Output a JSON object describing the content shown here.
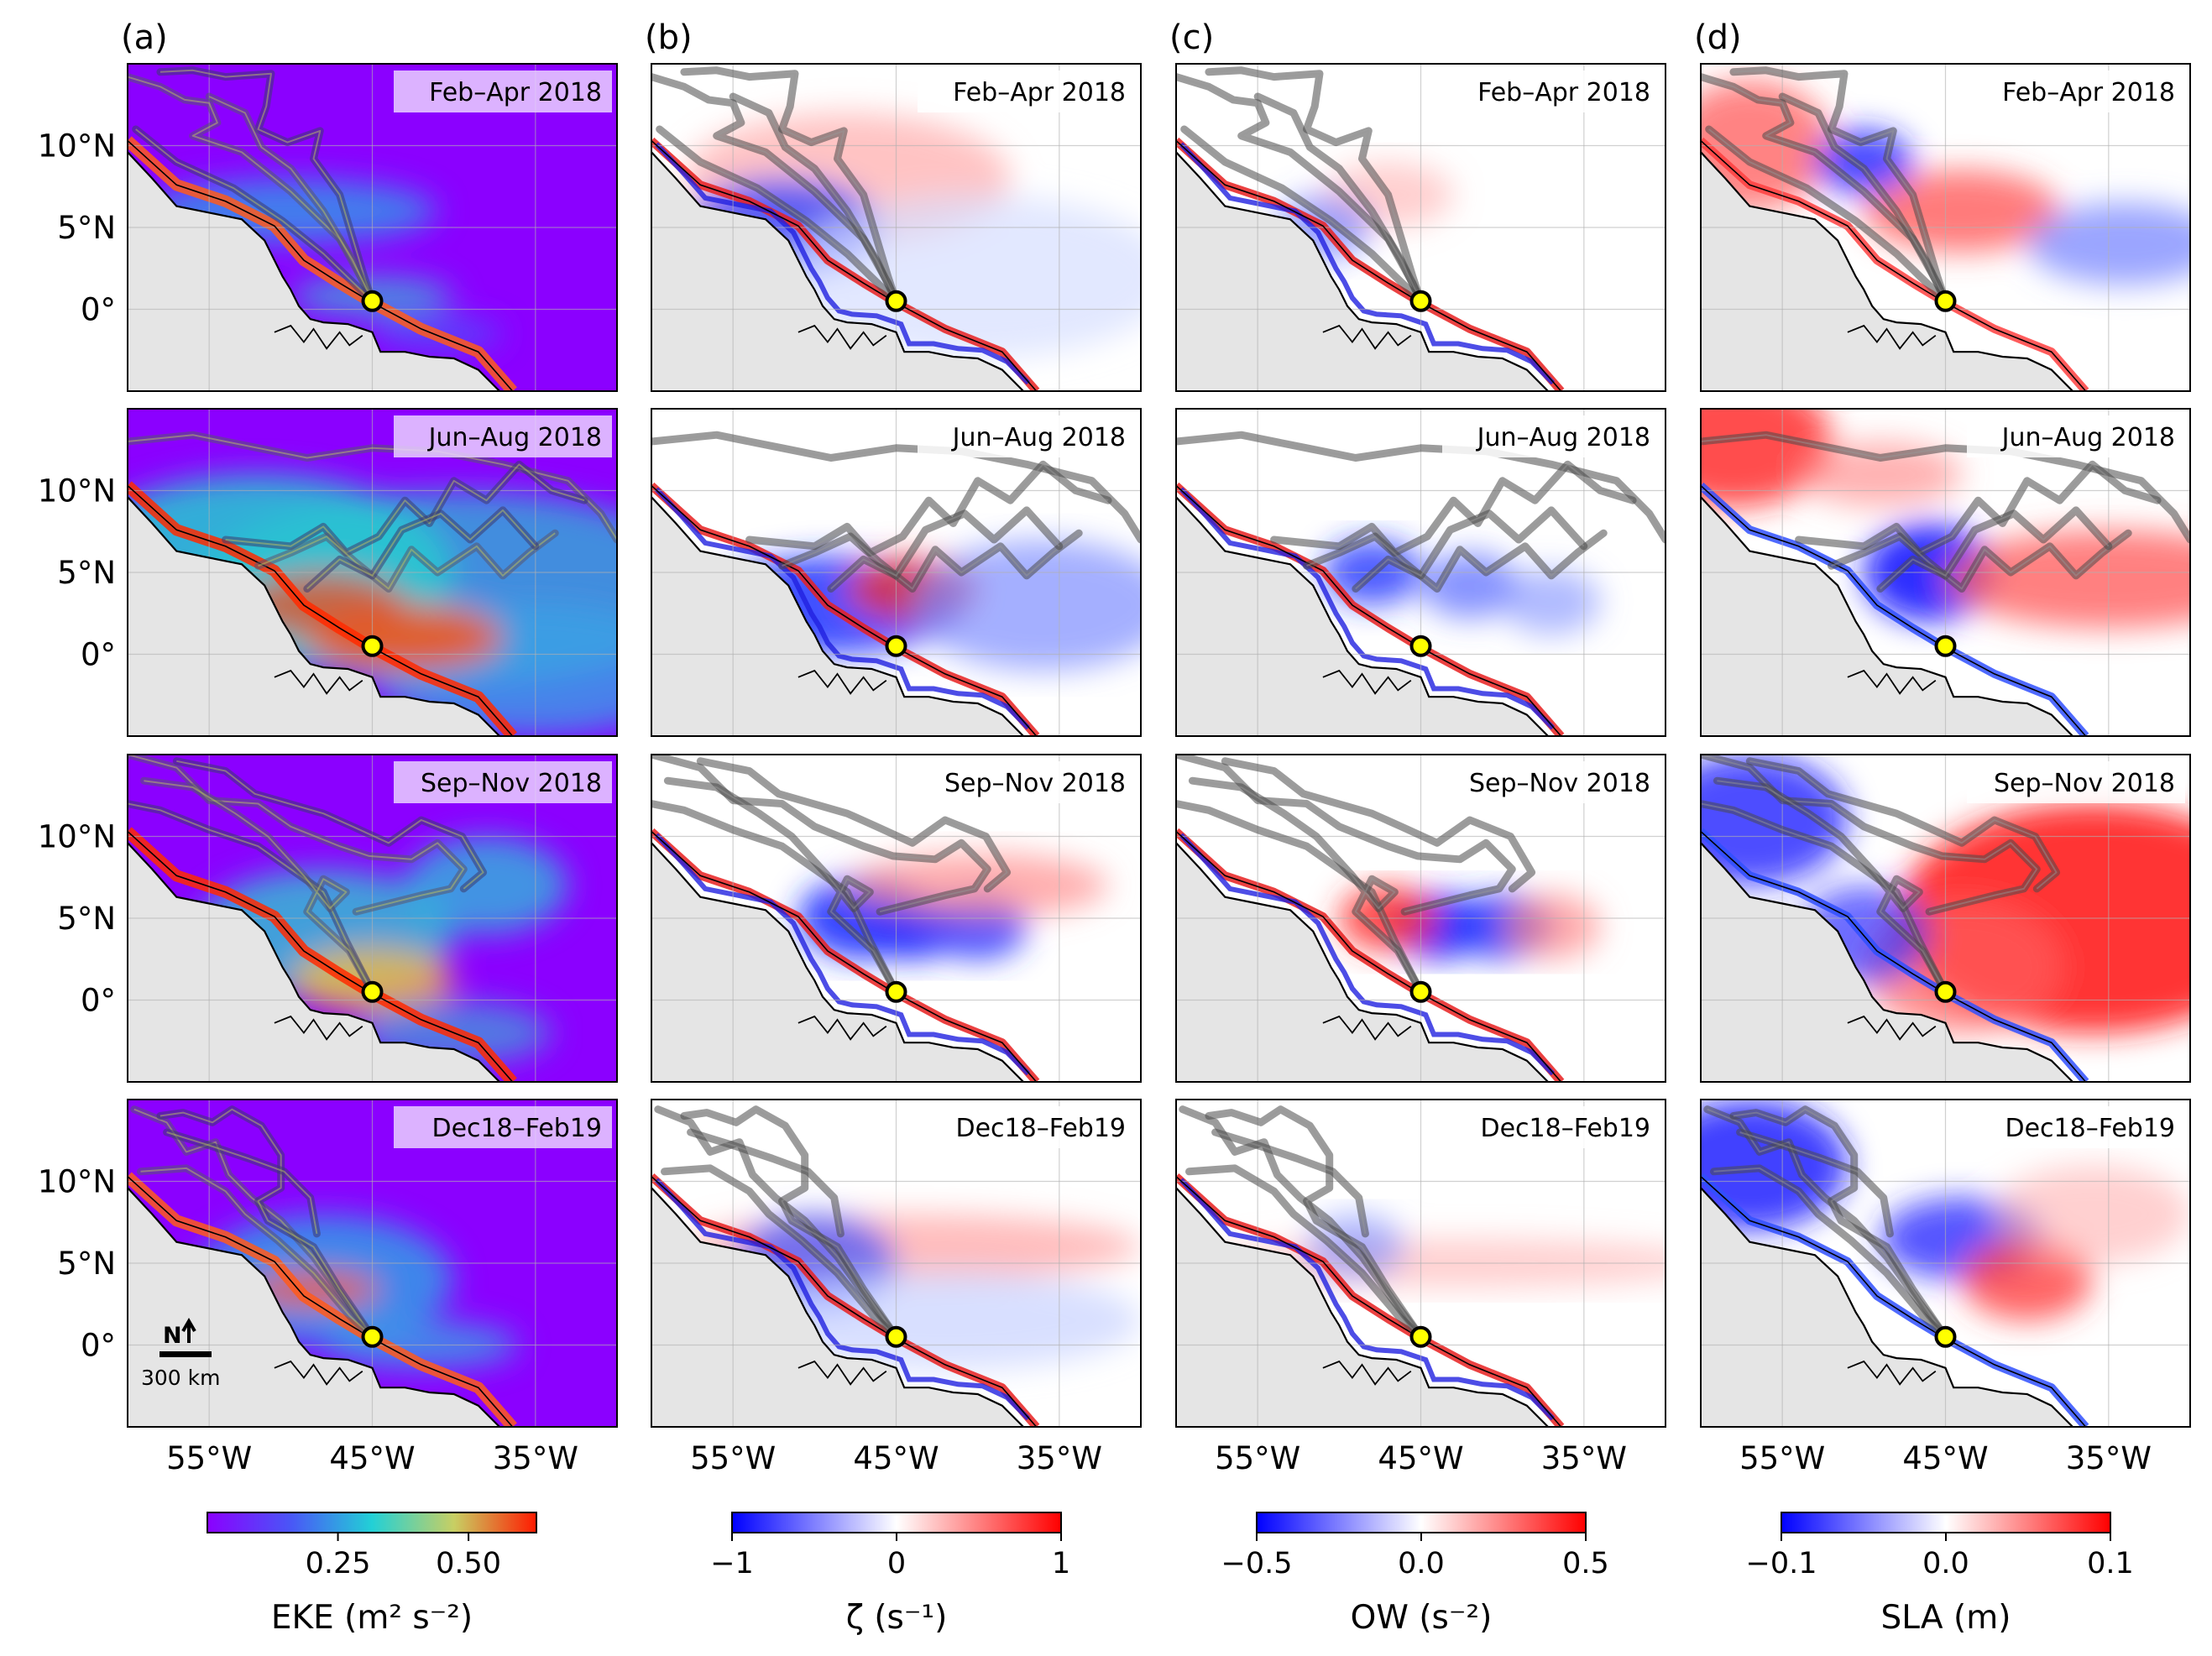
{
  "chart_data": {
    "type": "heatmap",
    "description_free": true,
    "panels": [
      {
        "label": "(a)",
        "variable": "EKE",
        "cbar_title": "EKE (m² s⁻²)",
        "cbar_ticks": [
          0.25,
          0.5
        ],
        "cbar_tick_labels": [
          "0.25",
          "0.50"
        ],
        "vmin": 0.0,
        "vmax": 0.63,
        "colormap": "rainbow"
      },
      {
        "label": "(b)",
        "variable": "ζ",
        "cbar_title": "ζ (s⁻¹)",
        "cbar_ticks": [
          -1,
          0,
          1
        ],
        "cbar_tick_labels": [
          "−1",
          "0",
          "1"
        ],
        "vmin": -1,
        "vmax": 1,
        "colormap": "bwr"
      },
      {
        "label": "(c)",
        "variable": "OW",
        "cbar_title": "OW (s⁻²)",
        "cbar_ticks": [
          -0.5,
          0.0,
          0.5
        ],
        "cbar_tick_labels": [
          "−0.5",
          "0.0",
          "0.5"
        ],
        "vmin": -0.5,
        "vmax": 0.5,
        "colormap": "bwr"
      },
      {
        "label": "(d)",
        "variable": "SLA",
        "cbar_title": "SLA (m)",
        "cbar_ticks": [
          -0.1,
          0.0,
          0.1
        ],
        "cbar_tick_labels": [
          "−0.1",
          "0.0",
          "0.1"
        ],
        "vmin": -0.1,
        "vmax": 0.1,
        "colormap": "bwr"
      }
    ],
    "seasons": [
      "Feb–Apr 2018",
      "Jun–Aug 2018",
      "Sep–Nov 2018",
      "Dec18–Feb19"
    ],
    "lat_ticks": [
      10,
      5,
      0
    ],
    "lat_tick_labels": [
      "10°N",
      "5°N",
      "0°"
    ],
    "lon_ticks": [
      -55,
      -45,
      -35
    ],
    "lon_tick_labels": [
      "55°W",
      "45°W",
      "35°W"
    ],
    "lon_range": [
      -60,
      -30
    ],
    "lat_range": [
      -5,
      15
    ],
    "release_point": {
      "lon": -45,
      "lat": 0.5
    },
    "scale_bar": {
      "north_label": "N",
      "distance_label": "300 km"
    }
  }
}
